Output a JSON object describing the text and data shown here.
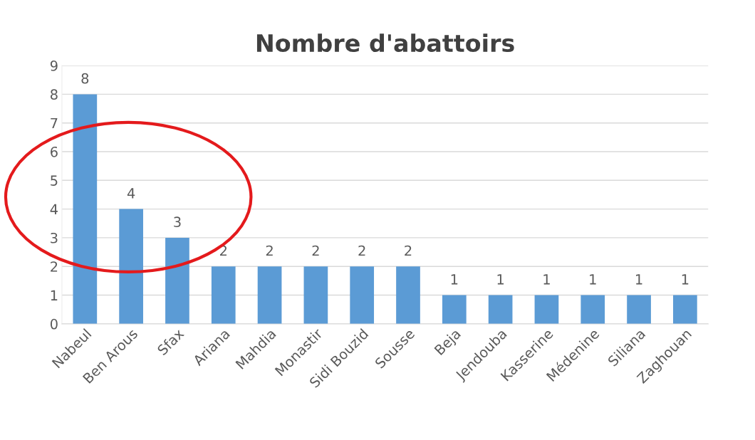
{
  "chart_data": {
    "type": "bar",
    "title": "Nombre d'abattoirs",
    "categories": [
      "Nabeul",
      "Ben Arous",
      "Sfax",
      "Ariana",
      "Mahdia",
      "Monastir",
      "Sidi Bouzid",
      "Sousse",
      "Beja",
      "Jendouba",
      "Kasserine",
      "Médenine",
      "Siliana",
      "Zaghouan"
    ],
    "values": [
      8,
      4,
      3,
      2,
      2,
      2,
      2,
      2,
      1,
      1,
      1,
      1,
      1,
      1
    ],
    "color": "#5b9bd5",
    "ylim": [
      0,
      9
    ],
    "yticks": [
      0,
      1,
      2,
      3,
      4,
      5,
      6,
      7,
      8,
      9
    ],
    "grid": "y",
    "data_labels": true,
    "legend": false
  }
}
